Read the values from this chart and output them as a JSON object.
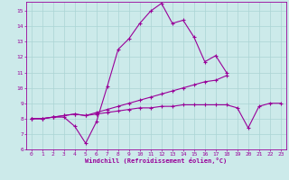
{
  "xlabel": "Windchill (Refroidissement éolien,°C)",
  "xlim": [
    -0.5,
    23.5
  ],
  "ylim": [
    6,
    15.6
  ],
  "yticks": [
    6,
    7,
    8,
    9,
    10,
    11,
    12,
    13,
    14,
    15
  ],
  "xticks": [
    0,
    1,
    2,
    3,
    4,
    5,
    6,
    7,
    8,
    9,
    10,
    11,
    12,
    13,
    14,
    15,
    16,
    17,
    18,
    19,
    20,
    21,
    22,
    23
  ],
  "bg_color": "#cceaea",
  "grid_color": "#aad4d4",
  "line_color": "#990099",
  "line1_y": [
    8.0,
    8.0,
    8.1,
    8.1,
    7.5,
    6.4,
    7.8,
    10.1,
    12.5,
    13.2,
    14.2,
    15.0,
    15.5,
    14.2,
    14.4,
    13.3,
    11.7,
    12.1,
    11.0,
    null,
    null,
    null,
    null,
    null
  ],
  "line2_y": [
    8.0,
    8.0,
    8.1,
    8.2,
    8.3,
    8.2,
    8.4,
    8.6,
    8.8,
    9.0,
    9.2,
    9.4,
    9.6,
    9.8,
    10.0,
    10.2,
    10.4,
    10.5,
    10.8,
    null,
    null,
    null,
    null,
    null
  ],
  "line3_y": [
    8.0,
    8.0,
    8.1,
    8.2,
    8.3,
    8.2,
    8.3,
    8.4,
    8.5,
    8.6,
    8.7,
    8.7,
    8.8,
    8.8,
    8.9,
    8.9,
    8.9,
    8.9,
    8.9,
    8.7,
    7.4,
    8.8,
    9.0,
    9.0
  ]
}
